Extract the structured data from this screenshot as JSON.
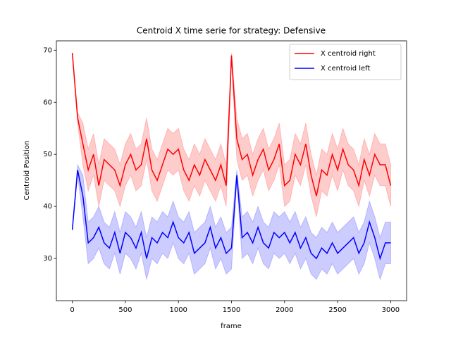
{
  "chart_data": {
    "type": "line",
    "title": "Centroid X time serie for strategy: Defensive",
    "xlabel": "frame",
    "ylabel": "Centroid Position",
    "x": [
      0,
      50,
      100,
      150,
      200,
      250,
      300,
      350,
      400,
      450,
      500,
      550,
      600,
      650,
      700,
      750,
      800,
      850,
      900,
      950,
      1000,
      1050,
      1100,
      1150,
      1200,
      1250,
      1300,
      1350,
      1400,
      1450,
      1500,
      1550,
      1600,
      1650,
      1700,
      1750,
      1800,
      1850,
      1900,
      1950,
      2000,
      2050,
      2100,
      2150,
      2200,
      2250,
      2300,
      2350,
      2400,
      2450,
      2500,
      2550,
      2600,
      2650,
      2700,
      2750,
      2800,
      2850,
      2900,
      2950,
      3000
    ],
    "series": [
      {
        "name": "X centroid right",
        "color": "#ff0000",
        "values": [
          69.5,
          57,
          52,
          47,
          50,
          44,
          49,
          48,
          47,
          44,
          48,
          50,
          47,
          48,
          53,
          47,
          45,
          48,
          51,
          50,
          51,
          47,
          45,
          48,
          46,
          49,
          47,
          45,
          48,
          44,
          69,
          53,
          49,
          50,
          46,
          49,
          51,
          47,
          49,
          52,
          44,
          45,
          50,
          48,
          52,
          46,
          42,
          47,
          46,
          50,
          47,
          51,
          48,
          47,
          44,
          49,
          46,
          50,
          48,
          48,
          44
        ],
        "upper": [
          69.5,
          58,
          56,
          51,
          54,
          48,
          53,
          52,
          51,
          48,
          52,
          54,
          51,
          52,
          57,
          51,
          49,
          52,
          55,
          54,
          55,
          51,
          49,
          52,
          50,
          53,
          51,
          49,
          52,
          48,
          69.5,
          57,
          53,
          54,
          50,
          53,
          55,
          51,
          53,
          56,
          48,
          49,
          54,
          52,
          56,
          50,
          46,
          51,
          50,
          54,
          51,
          55,
          52,
          51,
          48,
          53,
          50,
          54,
          52,
          52,
          48
        ],
        "lower": [
          69.5,
          56,
          48,
          43,
          46,
          40,
          45,
          44,
          43,
          40,
          44,
          46,
          43,
          44,
          49,
          43,
          41,
          44,
          47,
          46,
          47,
          43,
          41,
          44,
          42,
          45,
          43,
          41,
          44,
          40,
          68.5,
          49,
          45,
          46,
          42,
          45,
          47,
          43,
          45,
          48,
          40,
          41,
          46,
          44,
          48,
          42,
          38,
          43,
          42,
          46,
          43,
          47,
          44,
          43,
          40,
          45,
          42,
          46,
          44,
          44,
          40
        ]
      },
      {
        "name": "X centroid left",
        "color": "#0000ff",
        "values": [
          35.5,
          47,
          42,
          33,
          34,
          36,
          33,
          32,
          35,
          31,
          35,
          34,
          32,
          35,
          30,
          34,
          33,
          35,
          34,
          37,
          34,
          33,
          35,
          31,
          32,
          33,
          36,
          32,
          34,
          31,
          32,
          46,
          34,
          35,
          33,
          36,
          33,
          32,
          35,
          34,
          35,
          33,
          35,
          32,
          34,
          31,
          30,
          32,
          31,
          33,
          31,
          32,
          33,
          34,
          31,
          33,
          37,
          34,
          30,
          33,
          33
        ],
        "upper": [
          35.5,
          48,
          46,
          37,
          38,
          40,
          37,
          36,
          39,
          35,
          39,
          38,
          36,
          39,
          34,
          38,
          37,
          39,
          38,
          41,
          38,
          37,
          39,
          35,
          36,
          37,
          40,
          36,
          38,
          35,
          36,
          47,
          38,
          39,
          37,
          40,
          37,
          36,
          39,
          38,
          39,
          37,
          39,
          36,
          38,
          35,
          34,
          36,
          35,
          37,
          35,
          36,
          37,
          38,
          35,
          37,
          41,
          38,
          34,
          37,
          37
        ],
        "lower": [
          35.5,
          46,
          38,
          29,
          30,
          32,
          29,
          28,
          31,
          27,
          31,
          30,
          28,
          31,
          26,
          30,
          29,
          31,
          30,
          33,
          30,
          29,
          31,
          27,
          28,
          29,
          32,
          28,
          30,
          27,
          28,
          45,
          30,
          31,
          29,
          32,
          29,
          28,
          31,
          30,
          31,
          29,
          31,
          28,
          30,
          27,
          26,
          28,
          27,
          29,
          27,
          28,
          29,
          30,
          27,
          29,
          33,
          30,
          26,
          29,
          29
        ]
      }
    ],
    "xlim": [
      -150,
      3150
    ],
    "xticks": [
      0,
      500,
      1000,
      1500,
      2000,
      2500,
      3000
    ],
    "ylim": [
      21.9,
      71.8
    ],
    "yticks": [
      30,
      40,
      50,
      60,
      70
    ],
    "legend": "upper right",
    "band_opacity": 0.2
  }
}
